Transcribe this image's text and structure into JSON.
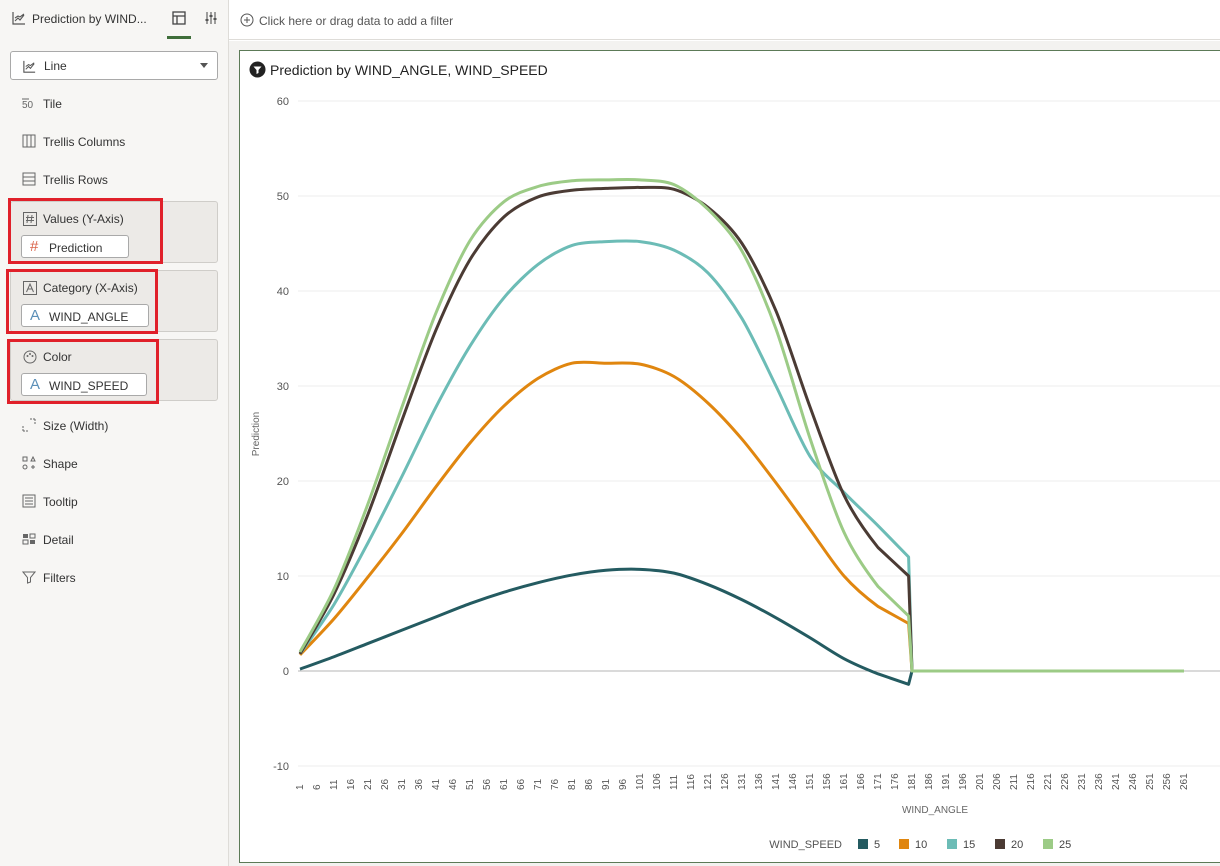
{
  "header": {
    "title": "Prediction by WIND..."
  },
  "viz_type": {
    "selected": "Line"
  },
  "grammar": {
    "tile": "Tile",
    "trellis_columns": "Trellis Columns",
    "trellis_rows": "Trellis Rows",
    "values_label": "Values (Y-Axis)",
    "values_field": "Prediction",
    "category_label": "Category (X-Axis)",
    "category_field": "WIND_ANGLE",
    "color_label": "Color",
    "color_field": "WIND_SPEED",
    "size": "Size (Width)",
    "shape": "Shape",
    "tooltip": "Tooltip",
    "detail": "Detail",
    "filters": "Filters"
  },
  "filterbar": {
    "placeholder": "Click here or drag data to add a filter"
  },
  "chart_title": "Prediction by WIND_ANGLE, WIND_SPEED",
  "colors": {
    "accent": "#3f6e3a",
    "highlight": "#e0202a"
  },
  "chart_data": {
    "type": "line",
    "xlabel": "WIND_ANGLE",
    "ylabel": "Prediction",
    "ylim": [
      -10,
      60
    ],
    "yticks": [
      -10,
      0,
      10,
      20,
      30,
      40,
      50,
      60
    ],
    "x_ticks": [
      "1",
      "6",
      "11",
      "16",
      "21",
      "26",
      "31",
      "36",
      "41",
      "46",
      "51",
      "56",
      "61",
      "66",
      "71",
      "76",
      "81",
      "86",
      "91",
      "96",
      "101",
      "106",
      "111",
      "116",
      "121",
      "126",
      "131",
      "136",
      "141",
      "146",
      "151",
      "156",
      "161",
      "166",
      "171",
      "176",
      "181",
      "186",
      "191",
      "196",
      "201",
      "206",
      "211",
      "216",
      "221",
      "226",
      "231",
      "236",
      "241",
      "246",
      "251",
      "256",
      "261"
    ],
    "legend_title": "WIND_SPEED",
    "legend_position": "bottom",
    "x": [
      1,
      11,
      21,
      31,
      41,
      51,
      61,
      71,
      81,
      91,
      101,
      111,
      121,
      131,
      141,
      151,
      161,
      171,
      180,
      181,
      261
    ],
    "series": [
      {
        "name": "5",
        "color": "#245b61",
        "values": [
          0.2,
          1.5,
          2.9,
          4.3,
          5.7,
          7.1,
          8.3,
          9.3,
          10.1,
          10.6,
          10.7,
          10.3,
          9.1,
          7.5,
          5.6,
          3.5,
          1.3,
          -0.3,
          -1.4,
          0,
          0
        ]
      },
      {
        "name": "10",
        "color": "#e0860f",
        "values": [
          1.7,
          5.5,
          9.9,
          14.5,
          19.4,
          24.0,
          27.9,
          30.8,
          32.4,
          32.4,
          32.3,
          31.0,
          28.2,
          24.4,
          19.8,
          14.9,
          10.0,
          6.8,
          5.0,
          0,
          0
        ]
      },
      {
        "name": "15",
        "color": "#6cbcb6",
        "values": [
          1.8,
          7.0,
          13.5,
          20.5,
          27.8,
          34.2,
          39.3,
          42.8,
          44.8,
          45.2,
          45.2,
          44.3,
          41.9,
          37.1,
          30.0,
          22.6,
          18.8,
          15.3,
          12.0,
          0,
          0
        ]
      },
      {
        "name": "20",
        "color": "#4b3b34",
        "values": [
          1.8,
          8.1,
          16.5,
          26.4,
          35.9,
          43.3,
          47.8,
          49.9,
          50.6,
          50.8,
          50.9,
          50.7,
          48.8,
          45.0,
          37.9,
          27.8,
          18.5,
          13.0,
          10.0,
          0,
          0
        ]
      },
      {
        "name": "25",
        "color": "#9ccb86",
        "values": [
          2.0,
          8.6,
          17.6,
          27.8,
          37.7,
          45.3,
          49.4,
          51.0,
          51.6,
          51.7,
          51.7,
          51.2,
          48.6,
          44.2,
          36.0,
          24.5,
          14.6,
          8.9,
          5.8,
          0,
          0
        ]
      }
    ]
  }
}
